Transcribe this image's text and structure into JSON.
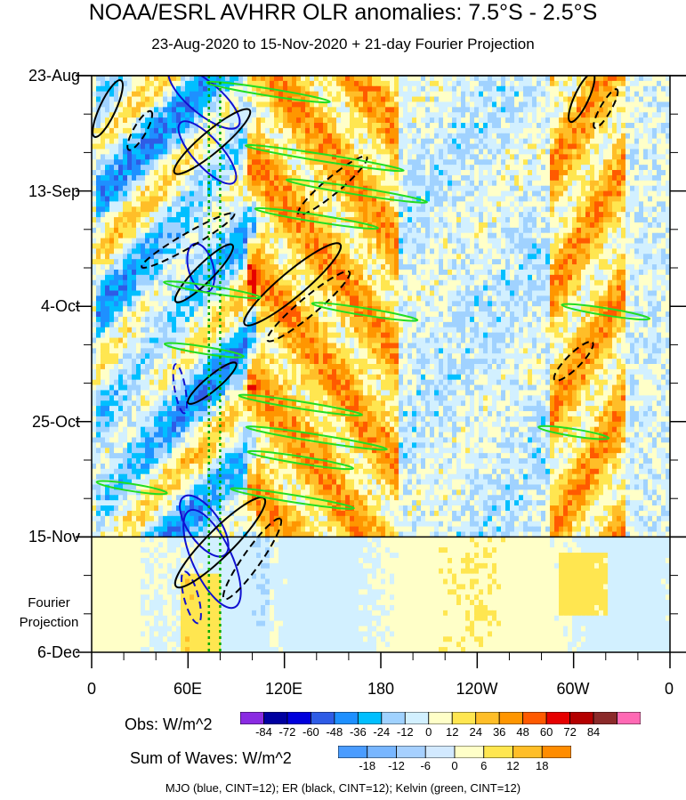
{
  "title": "NOAA/ESRL AVHRR OLR anomalies: 7.5°S - 2.5°S",
  "subtitle": "23-Aug-2020 to 15-Nov-2020 + 21-day Fourier Projection",
  "projection_label_line1": "Fourier",
  "projection_label_line2": "Projection",
  "obs_colorbar": {
    "title": "Obs: W/m^2",
    "ticks": [
      "-84",
      "-72",
      "-60",
      "-48",
      "-36",
      "-24",
      "-12",
      "0",
      "12",
      "24",
      "36",
      "48",
      "60",
      "72",
      "84"
    ],
    "colors": [
      "#8a2be2",
      "#0000a0",
      "#0000dc",
      "#2e5ce6",
      "#1e90ff",
      "#00bfff",
      "#a0d2ff",
      "#d2f0ff",
      "#ffffc8",
      "#ffe650",
      "#ffbe28",
      "#ff9600",
      "#ff5a00",
      "#e60000",
      "#b40000",
      "#8b2a2a",
      "#ff69b4"
    ]
  },
  "waves_colorbar": {
    "title": "Sum of Waves: W/m^2",
    "ticks": [
      "-18",
      "-12",
      "-6",
      "0",
      "6",
      "12",
      "18"
    ],
    "colors": [
      "#4a9cff",
      "#78b6ff",
      "#a6d0ff",
      "#d2e9ff",
      "#ffffc8",
      "#ffe650",
      "#ffbe28",
      "#ff8c00"
    ]
  },
  "footer": "MJO (blue, CINT=12); ER (black, CINT=12); Kelvin (green, CINT=12)",
  "colors": {
    "mjo": "#1010d0",
    "er": "#000000",
    "kelvin": "#22dd22",
    "marker": "#00aa00"
  },
  "chart_data": {
    "type": "heatmap",
    "title": "NOAA/ESRL AVHRR OLR anomalies: 7.5°S - 2.5°S",
    "subtitle": "23-Aug-2020 to 15-Nov-2020 + 21-day Fourier Projection",
    "x_ticks": [
      "0",
      "60E",
      "120E",
      "180",
      "120W",
      "60W",
      "0"
    ],
    "x_tick_values": [
      0,
      60,
      120,
      180,
      240,
      300,
      360
    ],
    "xlim": [
      0,
      360
    ],
    "y_ticks": [
      "23-Aug",
      "13-Sep",
      "4-Oct",
      "25-Oct",
      "15-Nov",
      "6-Dec"
    ],
    "y_tick_days": [
      0,
      21,
      42,
      63,
      84,
      105
    ],
    "ylim_days": [
      0,
      105
    ],
    "observed_end": "15-Nov",
    "projection_end": "6-Dec",
    "reference_longitudes": [
      73,
      80
    ],
    "units": "W/m^2"
  }
}
